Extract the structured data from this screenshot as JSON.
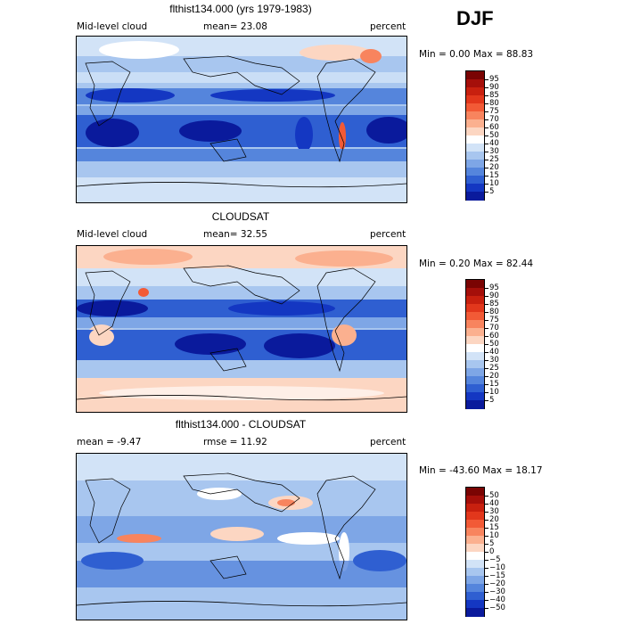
{
  "season": "DJF",
  "panels": [
    {
      "title": "flthist134.000 (yrs 1979-1983)",
      "left_label": "Mid-level cloud",
      "center_label": "mean=  23.08",
      "right_label": "percent",
      "minmax": "Min =    0.00 Max =  88.83",
      "colorbar": {
        "labels": [
          "95",
          "90",
          "85",
          "80",
          "75",
          "70",
          "60",
          "50",
          "40",
          "30",
          "25",
          "20",
          "15",
          "10",
          "5"
        ],
        "colors": [
          "#7a0403",
          "#a50f0a",
          "#c8200f",
          "#e2371c",
          "#f25a36",
          "#f8845e",
          "#fbb08f",
          "#fcd6c2",
          "#ffffff",
          "#d2e3f7",
          "#a8c6ef",
          "#7ea6e6",
          "#5585dc",
          "#2f5fd1",
          "#1437c2",
          "#0a1a9c"
        ]
      }
    },
    {
      "title": "CLOUDSAT",
      "left_label": "Mid-level cloud",
      "center_label": "mean=  32.55",
      "right_label": "percent",
      "minmax": "Min =    0.20 Max =  82.44",
      "colorbar": {
        "labels": [
          "95",
          "90",
          "85",
          "80",
          "75",
          "70",
          "60",
          "50",
          "40",
          "30",
          "25",
          "20",
          "15",
          "10",
          "5"
        ],
        "colors": [
          "#7a0403",
          "#a50f0a",
          "#c8200f",
          "#e2371c",
          "#f25a36",
          "#f8845e",
          "#fbb08f",
          "#fcd6c2",
          "#ffffff",
          "#d2e3f7",
          "#a8c6ef",
          "#7ea6e6",
          "#5585dc",
          "#2f5fd1",
          "#1437c2",
          "#0a1a9c"
        ]
      }
    },
    {
      "title": "flthist134.000 - CLOUDSAT",
      "left_label": "mean =   -9.47",
      "center_label": "rmse =   11.92",
      "right_label": "percent",
      "minmax": "Min = -43.60 Max =  18.17",
      "colorbar": {
        "labels": [
          "50",
          "40",
          "30",
          "20",
          "15",
          "10",
          "5",
          "0",
          "−5",
          "−10",
          "−15",
          "−20",
          "−30",
          "−40",
          "−50"
        ],
        "colors": [
          "#7a0403",
          "#a50f0a",
          "#c8200f",
          "#e2371c",
          "#f25a36",
          "#f8845e",
          "#fbb08f",
          "#fcd6c2",
          "#ffffff",
          "#d2e3f7",
          "#a8c6ef",
          "#7ea6e6",
          "#5585dc",
          "#2f5fd1",
          "#1437c2",
          "#0a1a9c"
        ]
      }
    }
  ]
}
